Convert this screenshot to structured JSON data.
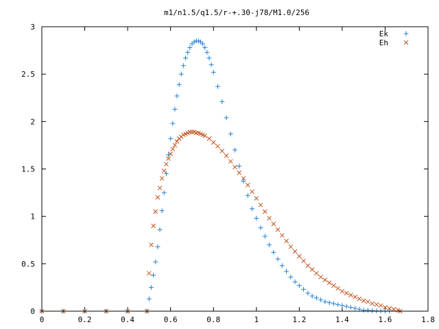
{
  "chart_data": {
    "type": "scatter",
    "title": "m1/n1.5/q1.5/r-+.30-j78/M1.0/256",
    "xlabel": "",
    "ylabel": "",
    "xlim": [
      0,
      1.8
    ],
    "ylim": [
      0,
      3
    ],
    "xticks": [
      "0",
      "0.2",
      "0.4",
      "0.6",
      "0.8",
      "1",
      "1.2",
      "1.4",
      "1.6",
      "1.8"
    ],
    "yticks": [
      "0",
      "0.5",
      "1",
      "1.5",
      "2",
      "2.5",
      "3"
    ],
    "grid": false,
    "legend_position": "top-right",
    "series": [
      {
        "name": "Ek",
        "marker": "plus",
        "color": "#1f7fd4",
        "points": [
          [
            0.0,
            0.0
          ],
          [
            0.1,
            0.0
          ],
          [
            0.2,
            0.0
          ],
          [
            0.3,
            0.0
          ],
          [
            0.4,
            0.0
          ],
          [
            0.49,
            0.0
          ],
          [
            0.5,
            0.13
          ],
          [
            0.51,
            0.25
          ],
          [
            0.52,
            0.38
          ],
          [
            0.53,
            0.52
          ],
          [
            0.54,
            0.68
          ],
          [
            0.55,
            0.86
          ],
          [
            0.56,
            1.06
          ],
          [
            0.57,
            1.25
          ],
          [
            0.58,
            1.45
          ],
          [
            0.59,
            1.65
          ],
          [
            0.6,
            1.82
          ],
          [
            0.61,
            1.98
          ],
          [
            0.62,
            2.13
          ],
          [
            0.63,
            2.27
          ],
          [
            0.64,
            2.39
          ],
          [
            0.65,
            2.5
          ],
          [
            0.66,
            2.59
          ],
          [
            0.67,
            2.67
          ],
          [
            0.68,
            2.73
          ],
          [
            0.69,
            2.78
          ],
          [
            0.7,
            2.82
          ],
          [
            0.71,
            2.84
          ],
          [
            0.72,
            2.85
          ],
          [
            0.73,
            2.85
          ],
          [
            0.74,
            2.84
          ],
          [
            0.75,
            2.82
          ],
          [
            0.76,
            2.78
          ],
          [
            0.77,
            2.73
          ],
          [
            0.78,
            2.67
          ],
          [
            0.79,
            2.6
          ],
          [
            0.8,
            2.52
          ],
          [
            0.82,
            2.37
          ],
          [
            0.84,
            2.21
          ],
          [
            0.86,
            2.04
          ],
          [
            0.88,
            1.87
          ],
          [
            0.9,
            1.7
          ],
          [
            0.92,
            1.53
          ],
          [
            0.94,
            1.37
          ],
          [
            0.96,
            1.22
          ],
          [
            0.98,
            1.08
          ],
          [
            1.0,
            0.98
          ],
          [
            1.02,
            0.88
          ],
          [
            1.04,
            0.79
          ],
          [
            1.06,
            0.7
          ],
          [
            1.08,
            0.62
          ],
          [
            1.1,
            0.55
          ],
          [
            1.12,
            0.48
          ],
          [
            1.14,
            0.42
          ],
          [
            1.16,
            0.36
          ],
          [
            1.18,
            0.31
          ],
          [
            1.2,
            0.27
          ],
          [
            1.22,
            0.23
          ],
          [
            1.24,
            0.19
          ],
          [
            1.26,
            0.16
          ],
          [
            1.28,
            0.14
          ],
          [
            1.3,
            0.12
          ],
          [
            1.32,
            0.1
          ],
          [
            1.34,
            0.09
          ],
          [
            1.36,
            0.08
          ],
          [
            1.38,
            0.07
          ],
          [
            1.4,
            0.06
          ],
          [
            1.42,
            0.05
          ],
          [
            1.44,
            0.04
          ],
          [
            1.46,
            0.03
          ],
          [
            1.48,
            0.02
          ],
          [
            1.5,
            0.01
          ],
          [
            1.52,
            0.01
          ],
          [
            1.54,
            0.005
          ],
          [
            1.56,
            0.003
          ],
          [
            1.58,
            0.002
          ],
          [
            1.6,
            0.001
          ],
          [
            1.62,
            0.0
          ]
        ]
      },
      {
        "name": "Eh",
        "marker": "cross",
        "color": "#c0521a",
        "points": [
          [
            0.0,
            0.0
          ],
          [
            0.1,
            0.0
          ],
          [
            0.2,
            0.0
          ],
          [
            0.3,
            0.0
          ],
          [
            0.4,
            0.0
          ],
          [
            0.49,
            0.0
          ],
          [
            0.5,
            0.4
          ],
          [
            0.51,
            0.7
          ],
          [
            0.52,
            0.9
          ],
          [
            0.53,
            1.05
          ],
          [
            0.54,
            1.2
          ],
          [
            0.55,
            1.3
          ],
          [
            0.56,
            1.4
          ],
          [
            0.57,
            1.48
          ],
          [
            0.58,
            1.55
          ],
          [
            0.59,
            1.61
          ],
          [
            0.6,
            1.66
          ],
          [
            0.61,
            1.71
          ],
          [
            0.62,
            1.75
          ],
          [
            0.63,
            1.79
          ],
          [
            0.64,
            1.82
          ],
          [
            0.65,
            1.84
          ],
          [
            0.66,
            1.86
          ],
          [
            0.67,
            1.87
          ],
          [
            0.68,
            1.88
          ],
          [
            0.69,
            1.89
          ],
          [
            0.7,
            1.89
          ],
          [
            0.71,
            1.89
          ],
          [
            0.72,
            1.88
          ],
          [
            0.73,
            1.88
          ],
          [
            0.74,
            1.87
          ],
          [
            0.75,
            1.86
          ],
          [
            0.76,
            1.85
          ],
          [
            0.78,
            1.82
          ],
          [
            0.8,
            1.78
          ],
          [
            0.82,
            1.74
          ],
          [
            0.84,
            1.69
          ],
          [
            0.86,
            1.64
          ],
          [
            0.88,
            1.58
          ],
          [
            0.9,
            1.52
          ],
          [
            0.92,
            1.46
          ],
          [
            0.94,
            1.4
          ],
          [
            0.96,
            1.33
          ],
          [
            0.98,
            1.26
          ],
          [
            1.0,
            1.19
          ],
          [
            1.02,
            1.12
          ],
          [
            1.04,
            1.05
          ],
          [
            1.06,
            0.98
          ],
          [
            1.08,
            0.92
          ],
          [
            1.1,
            0.86
          ],
          [
            1.12,
            0.8
          ],
          [
            1.14,
            0.74
          ],
          [
            1.16,
            0.68
          ],
          [
            1.18,
            0.63
          ],
          [
            1.2,
            0.58
          ],
          [
            1.22,
            0.53
          ],
          [
            1.24,
            0.48
          ],
          [
            1.26,
            0.44
          ],
          [
            1.28,
            0.4
          ],
          [
            1.3,
            0.36
          ],
          [
            1.32,
            0.33
          ],
          [
            1.34,
            0.3
          ],
          [
            1.36,
            0.27
          ],
          [
            1.38,
            0.24
          ],
          [
            1.4,
            0.21
          ],
          [
            1.42,
            0.19
          ],
          [
            1.44,
            0.17
          ],
          [
            1.46,
            0.15
          ],
          [
            1.48,
            0.13
          ],
          [
            1.5,
            0.11
          ],
          [
            1.52,
            0.1
          ],
          [
            1.54,
            0.08
          ],
          [
            1.56,
            0.07
          ],
          [
            1.58,
            0.06
          ],
          [
            1.6,
            0.04
          ],
          [
            1.62,
            0.03
          ],
          [
            1.64,
            0.02
          ],
          [
            1.66,
            0.01
          ],
          [
            1.67,
            0.0
          ]
        ]
      }
    ]
  }
}
